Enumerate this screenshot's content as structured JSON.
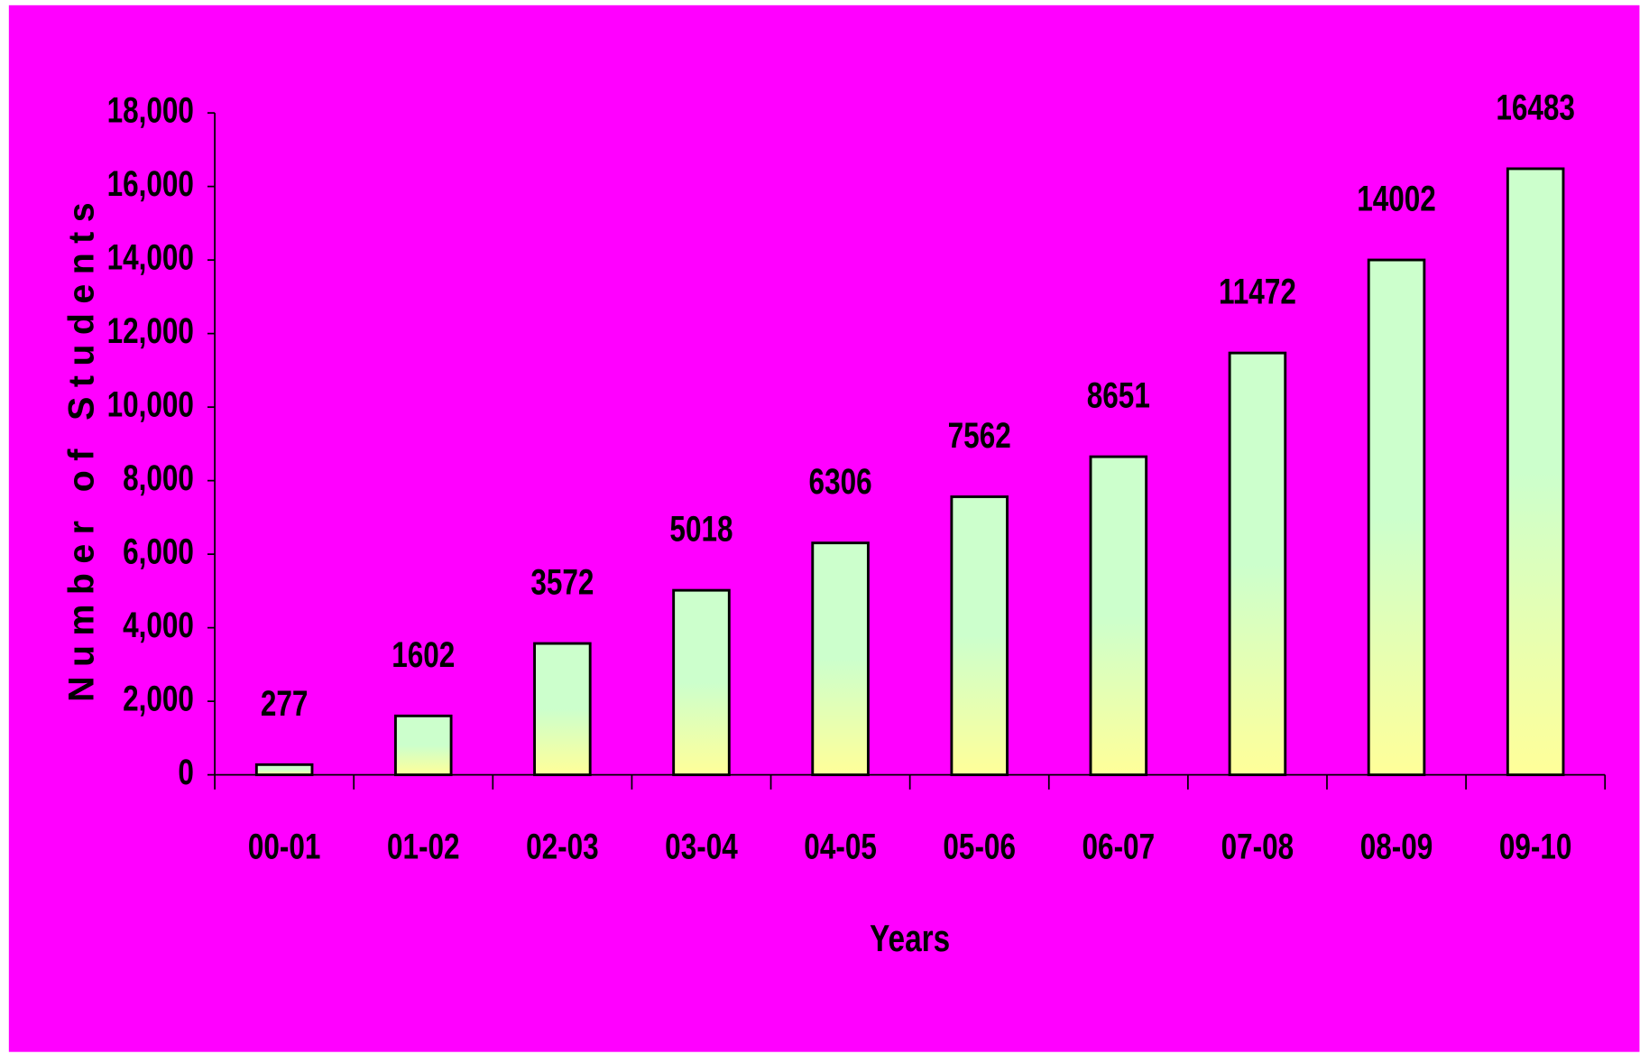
{
  "chart_data": {
    "type": "bar",
    "x_label": "Years",
    "y_label": "Number of Students",
    "categories": [
      "00-01",
      "01-02",
      "02-03",
      "03-04",
      "04-05",
      "05-06",
      "06-07",
      "07-08",
      "08-09",
      "09-10"
    ],
    "values": [
      277,
      1602,
      3572,
      5018,
      6306,
      7562,
      8651,
      11472,
      14002,
      16483
    ],
    "ylim": [
      0,
      18000
    ],
    "yticks": [
      0,
      {
        "value": 2000,
        "label": "2,000"
      },
      {
        "value": 4000,
        "label": "4,000"
      },
      {
        "value": 6000,
        "label": "6,000"
      },
      {
        "value": 8000,
        "label": "8,000"
      },
      {
        "value": 10000,
        "label": "10,000"
      },
      {
        "value": 12000,
        "label": "12,000"
      },
      {
        "value": 14000,
        "label": "14,000"
      },
      {
        "value": 16000,
        "label": "16,000"
      },
      {
        "value": 18000,
        "label": "18,000"
      }
    ],
    "background": "#ff00ff",
    "grid": false
  }
}
